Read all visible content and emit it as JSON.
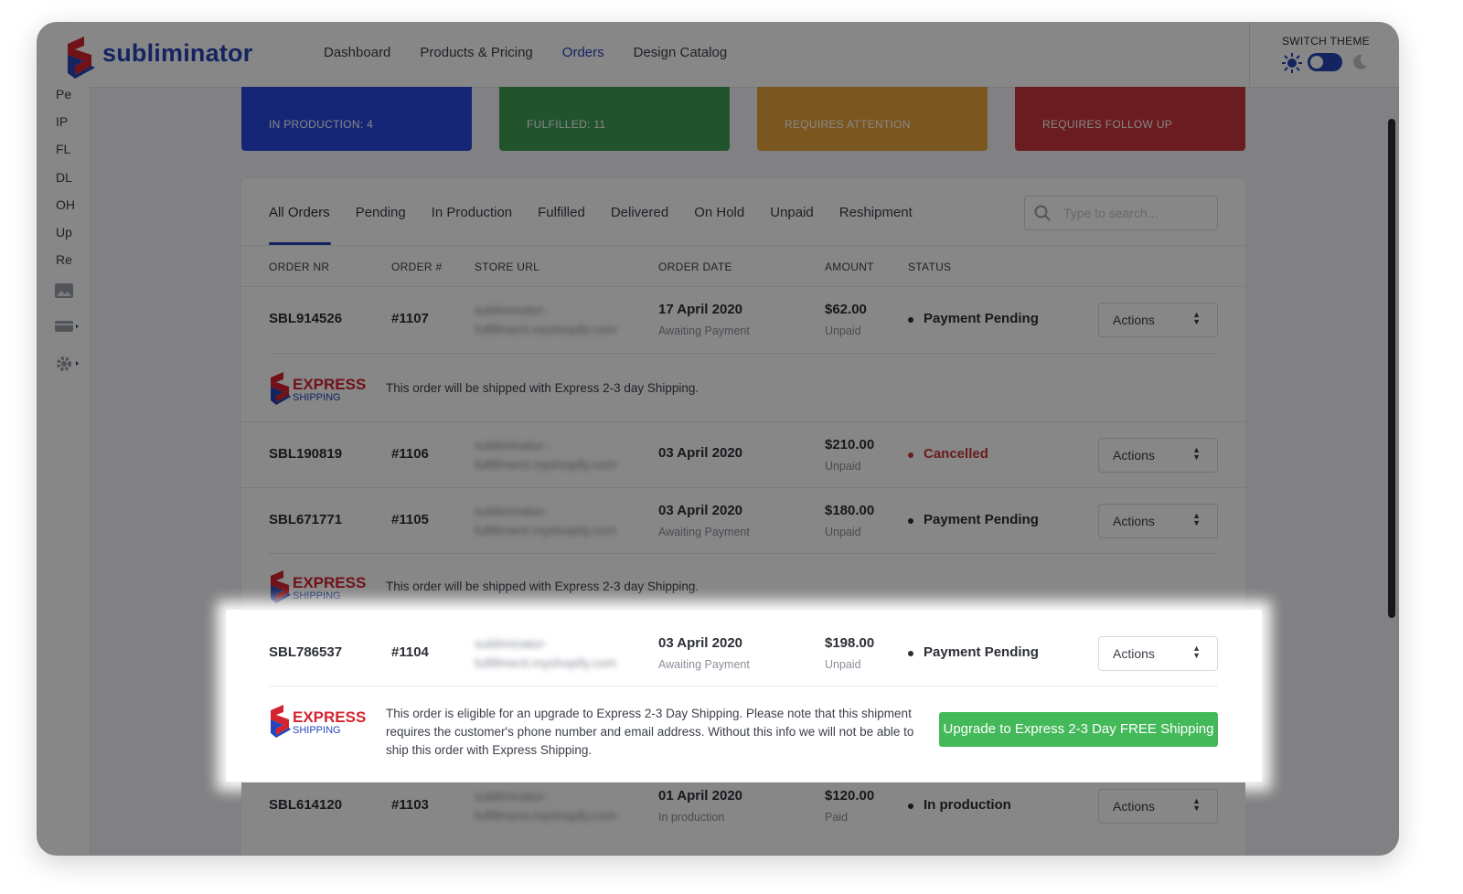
{
  "brand": {
    "name": "subliminator"
  },
  "nav": {
    "items": [
      "Dashboard",
      "Products & Pricing",
      "Orders",
      "Design Catalog"
    ],
    "active": "Orders"
  },
  "theme": {
    "title": "SWITCH THEME"
  },
  "sidebar": {
    "items": [
      "Pe",
      "IP",
      "FL",
      "DL",
      "OH",
      "Up",
      "Re"
    ]
  },
  "cards": [
    {
      "label": "IN PRODUCTION: 4",
      "color": "#2948e0"
    },
    {
      "label": "FULFILLED: 11",
      "color": "#3f9e55"
    },
    {
      "label": "REQUIRES ATTENTION",
      "color": "#e8a43b"
    },
    {
      "label": "REQUIRES FOLLOW UP",
      "color": "#c9353a"
    }
  ],
  "tabs": {
    "items": [
      "All Orders",
      "Pending",
      "In Production",
      "Fulfilled",
      "Delivered",
      "On Hold",
      "Unpaid",
      "Reshipment"
    ],
    "active": "All Orders"
  },
  "search": {
    "placeholder": "Type to search..."
  },
  "columns": {
    "order_nr": "ORDER NR",
    "order_num": "ORDER #",
    "store_url": "STORE URL",
    "order_date": "ORDER DATE",
    "amount": "AMOUNT",
    "status": "STATUS"
  },
  "orders": [
    {
      "nr": "SBL914526",
      "num": "#1107",
      "store1": "subliminator-",
      "store2": "fulfillment.myshopify.com",
      "date": "17 April 2020",
      "date_sub": "Awaiting Payment",
      "amount": "$62.00",
      "amount_sub": "Unpaid",
      "status": "Payment Pending",
      "actions": "Actions"
    },
    {
      "nr": "SBL190819",
      "num": "#1106",
      "store1": "subliminator-",
      "store2": "fulfillment.myshopify.com",
      "date": "03 April 2020",
      "date_sub": "",
      "amount": "$210.00",
      "amount_sub": "Unpaid",
      "status": "Cancelled",
      "actions": "Actions"
    },
    {
      "nr": "SBL671771",
      "num": "#1105",
      "store1": "subliminator-",
      "store2": "fulfillment.myshopify.com",
      "date": "03 April 2020",
      "date_sub": "Awaiting Payment",
      "amount": "$180.00",
      "amount_sub": "Unpaid",
      "status": "Payment Pending",
      "actions": "Actions"
    },
    {
      "nr": "SBL786537",
      "num": "#1104",
      "store1": "subliminator-",
      "store2": "fulfillment.myshopify.com",
      "date": "03 April 2020",
      "date_sub": "Awaiting Payment",
      "amount": "$198.00",
      "amount_sub": "Unpaid",
      "status": "Payment Pending",
      "actions": "Actions"
    },
    {
      "nr": "SBL614120",
      "num": "#1103",
      "store1": "subliminator-",
      "store2": "fulfillment.myshopify.com",
      "date": "01 April 2020",
      "date_sub": "In production",
      "amount": "$120.00",
      "amount_sub": "Paid",
      "status": "In production",
      "actions": "Actions"
    }
  ],
  "express": {
    "logo_top": "EXPRESS",
    "logo_bottom": "SHIPPING",
    "note": "This order will be shipped with Express 2-3 day Shipping.",
    "upgrade_line1": "This order is eligible for an upgrade to Express 2-3 Day Shipping. Please note that this shipment",
    "upgrade_line2": "requires the customer's phone number and email address. Without this info we will not be able to",
    "upgrade_line3": "ship this order with Express Shipping.",
    "upgrade_button": "Upgrade to Express 2-3 Day FREE Shipping"
  },
  "colors": {
    "accent": "#2645b8",
    "cancelled": "#c9353a",
    "upgrade": "#44b95a",
    "express_red": "#d4232f",
    "express_blue": "#2645b8"
  }
}
